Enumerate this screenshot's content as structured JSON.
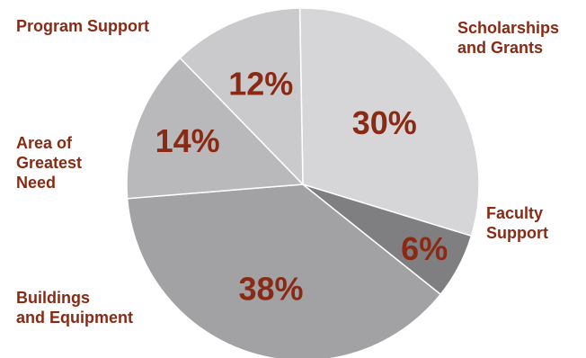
{
  "chart_data": {
    "type": "pie",
    "slices": [
      {
        "label": "Scholarships\nand Grants",
        "value": 30,
        "value_label": "30%",
        "color": "#d6d6d8"
      },
      {
        "label": "Faculty\nSupport",
        "value": 6,
        "value_label": "6%",
        "color": "#7f7f81"
      },
      {
        "label": "Buildings\nand Equipment",
        "value": 38,
        "value_label": "38%",
        "color": "#a2a2a4"
      },
      {
        "label": "Area of\nGreatest\nNeed",
        "value": 14,
        "value_label": "14%",
        "color": "#b9b9bb"
      },
      {
        "label": "Program Support",
        "value": 12,
        "value_label": "12%",
        "color": "#cacacc"
      }
    ],
    "label_color": "#8b2a14"
  }
}
